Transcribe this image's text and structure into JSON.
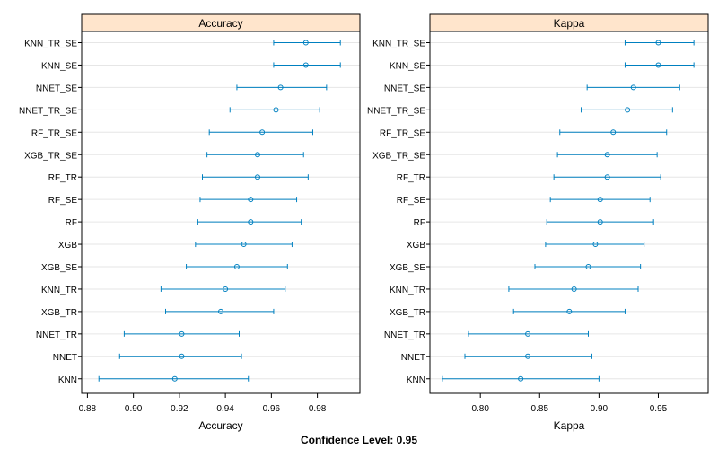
{
  "chart_data": {
    "type": "dotplot-interval",
    "categories": [
      "KNN_TR_SE",
      "KNN_SE",
      "NNET_SE",
      "NNET_TR_SE",
      "RF_TR_SE",
      "XGB_TR_SE",
      "RF_TR",
      "RF_SE",
      "RF",
      "XGB",
      "XGB_SE",
      "KNN_TR",
      "XGB_TR",
      "NNET_TR",
      "NNET",
      "KNN"
    ],
    "panels": [
      {
        "strip": "Accuracy",
        "xlabel": "Accuracy",
        "xlim": [
          0.8775,
          0.9985
        ],
        "ticks": [
          0.88,
          0.9,
          0.92,
          0.94,
          0.96,
          0.98
        ],
        "tick_labels": [
          "0.88",
          "0.90",
          "0.92",
          "0.94",
          "0.96",
          "0.98"
        ],
        "points": [
          {
            "est": 0.975,
            "lo": 0.961,
            "hi": 0.99
          },
          {
            "est": 0.975,
            "lo": 0.961,
            "hi": 0.99
          },
          {
            "est": 0.964,
            "lo": 0.945,
            "hi": 0.984
          },
          {
            "est": 0.962,
            "lo": 0.942,
            "hi": 0.981
          },
          {
            "est": 0.956,
            "lo": 0.933,
            "hi": 0.978
          },
          {
            "est": 0.954,
            "lo": 0.932,
            "hi": 0.974
          },
          {
            "est": 0.954,
            "lo": 0.93,
            "hi": 0.976
          },
          {
            "est": 0.951,
            "lo": 0.929,
            "hi": 0.971
          },
          {
            "est": 0.951,
            "lo": 0.928,
            "hi": 0.973
          },
          {
            "est": 0.948,
            "lo": 0.927,
            "hi": 0.969
          },
          {
            "est": 0.945,
            "lo": 0.923,
            "hi": 0.967
          },
          {
            "est": 0.94,
            "lo": 0.912,
            "hi": 0.966
          },
          {
            "est": 0.938,
            "lo": 0.914,
            "hi": 0.961
          },
          {
            "est": 0.921,
            "lo": 0.896,
            "hi": 0.946
          },
          {
            "est": 0.921,
            "lo": 0.894,
            "hi": 0.947
          },
          {
            "est": 0.918,
            "lo": 0.885,
            "hi": 0.95
          }
        ]
      },
      {
        "strip": "Kappa",
        "xlabel": "Kappa",
        "xlim": [
          0.7575,
          0.992
        ],
        "ticks": [
          0.8,
          0.85,
          0.9,
          0.95
        ],
        "tick_labels": [
          "0.80",
          "0.85",
          "0.90",
          "0.95"
        ],
        "points": [
          {
            "est": 0.95,
            "lo": 0.922,
            "hi": 0.98
          },
          {
            "est": 0.95,
            "lo": 0.922,
            "hi": 0.98
          },
          {
            "est": 0.929,
            "lo": 0.89,
            "hi": 0.968
          },
          {
            "est": 0.924,
            "lo": 0.885,
            "hi": 0.962
          },
          {
            "est": 0.912,
            "lo": 0.867,
            "hi": 0.957
          },
          {
            "est": 0.907,
            "lo": 0.865,
            "hi": 0.949
          },
          {
            "est": 0.907,
            "lo": 0.862,
            "hi": 0.952
          },
          {
            "est": 0.901,
            "lo": 0.859,
            "hi": 0.943
          },
          {
            "est": 0.901,
            "lo": 0.856,
            "hi": 0.946
          },
          {
            "est": 0.897,
            "lo": 0.855,
            "hi": 0.938
          },
          {
            "est": 0.891,
            "lo": 0.846,
            "hi": 0.935
          },
          {
            "est": 0.879,
            "lo": 0.824,
            "hi": 0.933
          },
          {
            "est": 0.875,
            "lo": 0.828,
            "hi": 0.922
          },
          {
            "est": 0.84,
            "lo": 0.79,
            "hi": 0.891
          },
          {
            "est": 0.84,
            "lo": 0.787,
            "hi": 0.894
          },
          {
            "est": 0.834,
            "lo": 0.768,
            "hi": 0.9
          }
        ]
      }
    ],
    "footer": "Confidence Level: 0.95",
    "grid": true,
    "colors": {
      "series": "#0080c0",
      "strip_bg": "#ffe5cc",
      "grid": "#e6e6e6",
      "frame": "#000000"
    }
  }
}
